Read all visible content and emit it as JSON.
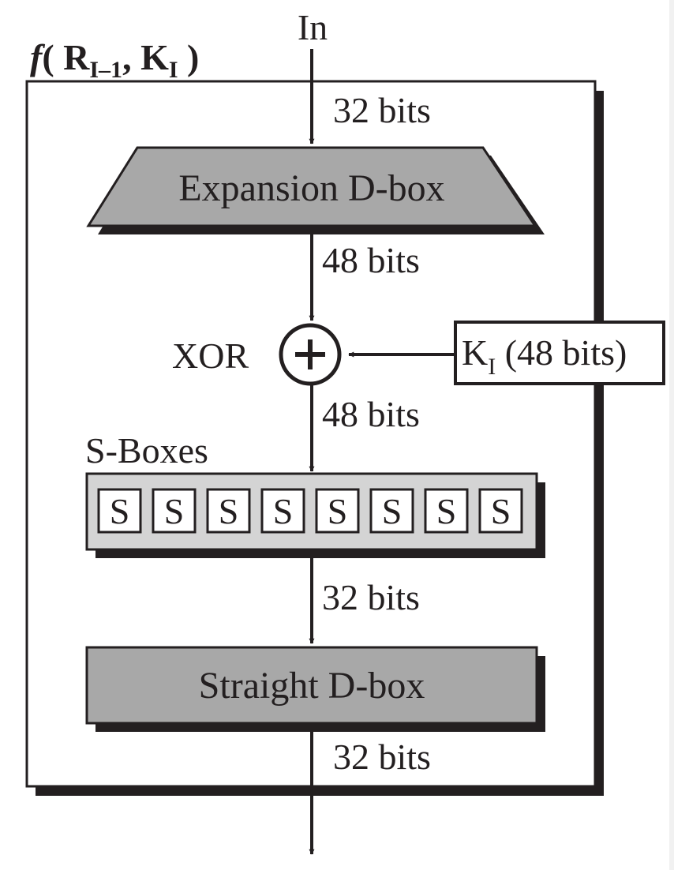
{
  "function_label": {
    "prefix": "f",
    "open": "( R",
    "sub1": "I–1",
    "mid": ", K",
    "sub2": "I",
    "close": " )"
  },
  "input_label": "In",
  "labels": {
    "bits_in": "32 bits",
    "bits_after_expansion": "48 bits",
    "bits_after_xor": "48 bits",
    "bits_after_sboxes": "32 bits",
    "bits_out": "32 bits"
  },
  "expansion_box": "Expansion D-box",
  "xor_label": "XOR",
  "key": {
    "main": "K",
    "sub": "I",
    "rest": " (48 bits)"
  },
  "sboxes_label": "S-Boxes",
  "sbox_letter": "S",
  "sbox_count": 8,
  "straight_box": "Straight D-box",
  "colors": {
    "ink": "#231f20",
    "box_fill": "#a8a8a8",
    "sbox_strip_fill": "#d4d4d4",
    "shadow": "#231f20",
    "background": "#ffffff"
  }
}
